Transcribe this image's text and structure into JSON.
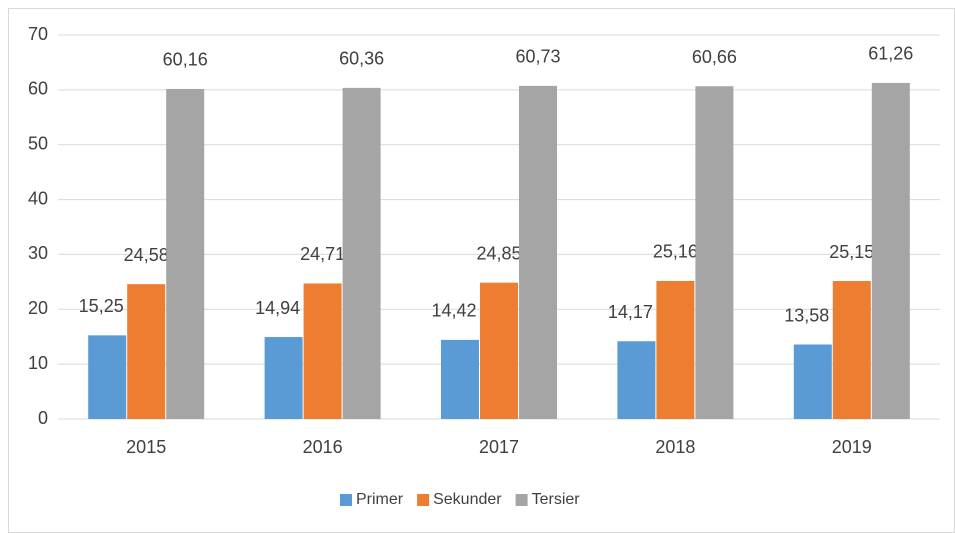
{
  "chart_data": {
    "type": "bar",
    "categories": [
      "2015",
      "2016",
      "2017",
      "2018",
      "2019"
    ],
    "series": [
      {
        "name": "Primer",
        "color": "#5b9bd5",
        "values": [
          15.25,
          14.94,
          14.42,
          14.17,
          13.58
        ],
        "value_labels": [
          "15,25",
          "14,94",
          "14,42",
          "14,17",
          "13,58"
        ]
      },
      {
        "name": "Sekunder",
        "color": "#ed7d31",
        "values": [
          24.58,
          24.71,
          24.85,
          25.16,
          25.15
        ],
        "value_labels": [
          "24,58",
          "24,71",
          "24,85",
          "25,16",
          "25,15"
        ]
      },
      {
        "name": "Tersier",
        "color": "#a5a5a5",
        "values": [
          60.16,
          60.36,
          60.73,
          60.66,
          61.26
        ],
        "value_labels": [
          "60,16",
          "60,36",
          "60,73",
          "60,66",
          "61,26"
        ]
      }
    ],
    "ylim": [
      0,
      70
    ],
    "yticks": [
      0,
      10,
      20,
      30,
      40,
      50,
      60,
      70
    ],
    "grid": true,
    "legend": "bottom"
  }
}
